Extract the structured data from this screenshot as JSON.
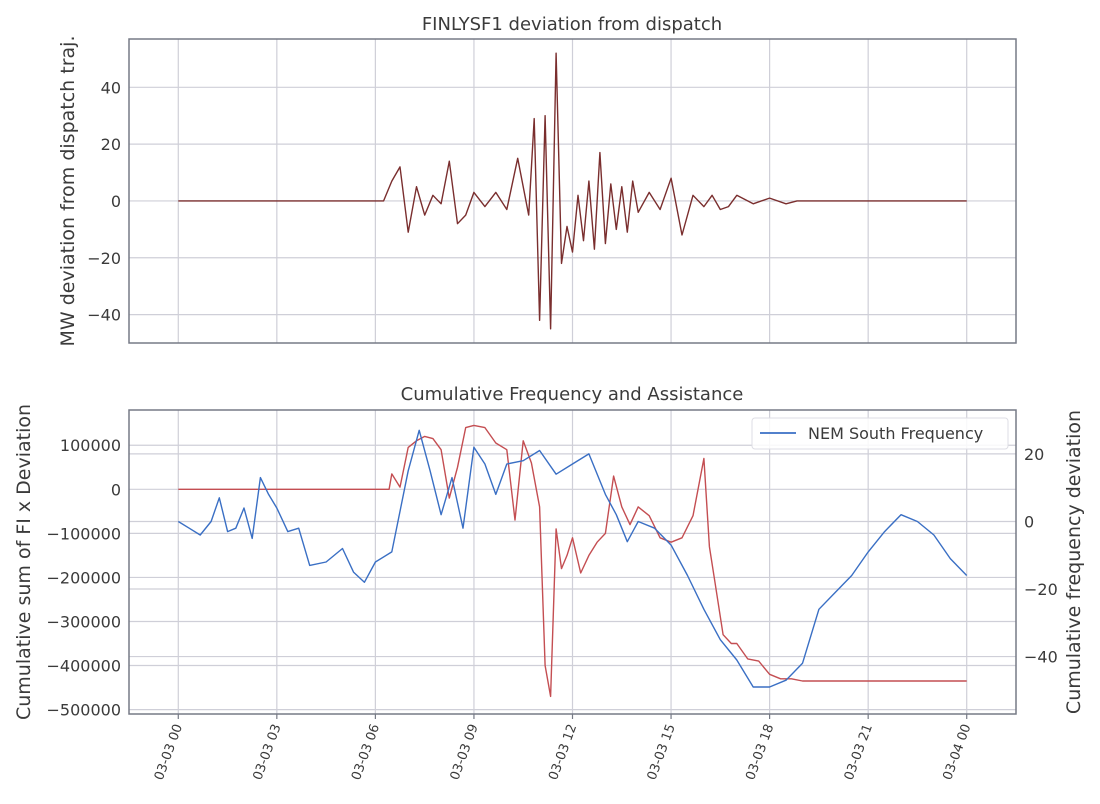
{
  "chart_data": [
    {
      "type": "line",
      "title": "FINLYSF1 deviation from dispatch",
      "xlabel": "",
      "ylabel": "MW deviation from dispatch traj.",
      "ylim": [
        -50,
        57
      ],
      "xlim": [
        "2024-03-02T22:30",
        "2024-03-04T01:30"
      ],
      "yticks": [
        -40,
        -20,
        0,
        20,
        40
      ],
      "ytick_labels": [
        "−40",
        "−20",
        "0",
        "20",
        "40"
      ],
      "grid": true,
      "series": [
        {
          "color": "#7a2e2e",
          "x": [
            "2024-03-03T00:00",
            "2024-03-03T06:15",
            "2024-03-03T06:30",
            "2024-03-03T06:45",
            "2024-03-03T07:00",
            "2024-03-03T07:15",
            "2024-03-03T07:30",
            "2024-03-03T07:45",
            "2024-03-03T08:00",
            "2024-03-03T08:15",
            "2024-03-03T08:30",
            "2024-03-03T08:45",
            "2024-03-03T09:00",
            "2024-03-03T09:20",
            "2024-03-03T09:40",
            "2024-03-03T10:00",
            "2024-03-03T10:20",
            "2024-03-03T10:40",
            "2024-03-03T10:50",
            "2024-03-03T11:00",
            "2024-03-03T11:10",
            "2024-03-03T11:20",
            "2024-03-03T11:30",
            "2024-03-03T11:40",
            "2024-03-03T11:50",
            "2024-03-03T12:00",
            "2024-03-03T12:10",
            "2024-03-03T12:20",
            "2024-03-03T12:30",
            "2024-03-03T12:40",
            "2024-03-03T12:50",
            "2024-03-03T13:00",
            "2024-03-03T13:10",
            "2024-03-03T13:20",
            "2024-03-03T13:30",
            "2024-03-03T13:40",
            "2024-03-03T13:50",
            "2024-03-03T14:00",
            "2024-03-03T14:20",
            "2024-03-03T14:40",
            "2024-03-03T15:00",
            "2024-03-03T15:20",
            "2024-03-03T15:40",
            "2024-03-03T16:00",
            "2024-03-03T16:15",
            "2024-03-03T16:30",
            "2024-03-03T16:45",
            "2024-03-03T17:00",
            "2024-03-03T17:30",
            "2024-03-03T18:00",
            "2024-03-03T18:30",
            "2024-03-03T18:50",
            "2024-03-03T19:00",
            "2024-03-04T00:00"
          ],
          "y": [
            0,
            0,
            7,
            12,
            -11,
            5,
            -5,
            2,
            -1,
            14,
            -8,
            -5,
            3,
            -2,
            3,
            -3,
            15,
            -5,
            29,
            -42,
            30,
            -45,
            52,
            -22,
            -9,
            -18,
            2,
            -14,
            7,
            -17,
            17,
            -15,
            6,
            -10,
            5,
            -11,
            7,
            -4,
            3,
            -3,
            8,
            -12,
            2,
            -2,
            2,
            -3,
            -2,
            2,
            -1,
            1,
            -1,
            0,
            0,
            0
          ]
        }
      ]
    },
    {
      "type": "line",
      "title": "Cumulative Frequency and Assistance",
      "xlabel": "",
      "ylabel": "Cumulative sum of FI x Deviation",
      "ylabel_right": "Cumulative frequency deviation",
      "ylim": [
        -510000,
        180000
      ],
      "ylim_right": [
        -57,
        33
      ],
      "xlim": [
        "2024-03-02T22:30",
        "2024-03-04T01:30"
      ],
      "yticks": [
        -500000,
        -400000,
        -300000,
        -200000,
        -100000,
        0,
        100000
      ],
      "ytick_labels": [
        "−500000",
        "−400000",
        "−300000",
        "−200000",
        "−100000",
        "0",
        "100000"
      ],
      "yticks_right": [
        -40,
        -20,
        0,
        20
      ],
      "ytick_labels_right": [
        "−40",
        "−20",
        "0",
        "20"
      ],
      "xticks": [
        "2024-03-03T00:00",
        "2024-03-03T03:00",
        "2024-03-03T06:00",
        "2024-03-03T09:00",
        "2024-03-03T12:00",
        "2024-03-03T15:00",
        "2024-03-03T18:00",
        "2024-03-03T21:00",
        "2024-03-04T00:00"
      ],
      "xtick_labels": [
        "03-03 00",
        "03-03 03",
        "03-03 06",
        "03-03 09",
        "03-03 12",
        "03-03 15",
        "03-03 18",
        "03-03 21",
        "03-04 00"
      ],
      "grid": true,
      "legend": {
        "placement": "top-right"
      },
      "series": [
        {
          "color": "#c44e52",
          "axis": "left",
          "x": [
            "2024-03-03T00:00",
            "2024-03-03T06:25",
            "2024-03-03T06:30",
            "2024-03-03T06:45",
            "2024-03-03T07:00",
            "2024-03-03T07:15",
            "2024-03-03T07:30",
            "2024-03-03T07:45",
            "2024-03-03T08:00",
            "2024-03-03T08:15",
            "2024-03-03T08:30",
            "2024-03-03T08:45",
            "2024-03-03T09:00",
            "2024-03-03T09:20",
            "2024-03-03T09:40",
            "2024-03-03T10:00",
            "2024-03-03T10:15",
            "2024-03-03T10:30",
            "2024-03-03T10:45",
            "2024-03-03T11:00",
            "2024-03-03T11:10",
            "2024-03-03T11:20",
            "2024-03-03T11:30",
            "2024-03-03T11:40",
            "2024-03-03T11:50",
            "2024-03-03T12:00",
            "2024-03-03T12:15",
            "2024-03-03T12:30",
            "2024-03-03T12:45",
            "2024-03-03T13:00",
            "2024-03-03T13:15",
            "2024-03-03T13:30",
            "2024-03-03T13:45",
            "2024-03-03T14:00",
            "2024-03-03T14:20",
            "2024-03-03T14:40",
            "2024-03-03T15:00",
            "2024-03-03T15:20",
            "2024-03-03T15:40",
            "2024-03-03T16:00",
            "2024-03-03T16:10",
            "2024-03-03T16:20",
            "2024-03-03T16:35",
            "2024-03-03T16:50",
            "2024-03-03T17:00",
            "2024-03-03T17:20",
            "2024-03-03T17:40",
            "2024-03-03T18:00",
            "2024-03-03T18:20",
            "2024-03-03T18:40",
            "2024-03-03T19:00",
            "2024-03-04T00:00"
          ],
          "y": [
            0,
            0,
            35000,
            5000,
            95000,
            110000,
            120000,
            115000,
            90000,
            -20000,
            50000,
            140000,
            145000,
            140000,
            105000,
            90000,
            -70000,
            110000,
            60000,
            -40000,
            -400000,
            -470000,
            -90000,
            -180000,
            -150000,
            -110000,
            -190000,
            -150000,
            -120000,
            -100000,
            30000,
            -40000,
            -80000,
            -40000,
            -60000,
            -110000,
            -120000,
            -110000,
            -60000,
            70000,
            -130000,
            -210000,
            -330000,
            -350000,
            -350000,
            -385000,
            -390000,
            -420000,
            -430000,
            -430000,
            -435000,
            -435000
          ]
        },
        {
          "name": "NEM South Frequency",
          "color": "#3a6fc4",
          "axis": "right",
          "x": [
            "2024-03-03T00:00",
            "2024-03-03T00:20",
            "2024-03-03T00:40",
            "2024-03-03T01:00",
            "2024-03-03T01:15",
            "2024-03-03T01:30",
            "2024-03-03T01:45",
            "2024-03-03T02:00",
            "2024-03-03T02:15",
            "2024-03-03T02:30",
            "2024-03-03T02:45",
            "2024-03-03T03:00",
            "2024-03-03T03:20",
            "2024-03-03T03:40",
            "2024-03-03T04:00",
            "2024-03-03T04:30",
            "2024-03-03T05:00",
            "2024-03-03T05:20",
            "2024-03-03T05:40",
            "2024-03-03T06:00",
            "2024-03-03T06:30",
            "2024-03-03T07:00",
            "2024-03-03T07:20",
            "2024-03-03T07:40",
            "2024-03-03T08:00",
            "2024-03-03T08:20",
            "2024-03-03T08:40",
            "2024-03-03T09:00",
            "2024-03-03T09:20",
            "2024-03-03T09:40",
            "2024-03-03T10:00",
            "2024-03-03T10:30",
            "2024-03-03T11:00",
            "2024-03-03T11:30",
            "2024-03-03T12:00",
            "2024-03-03T12:30",
            "2024-03-03T13:00",
            "2024-03-03T13:20",
            "2024-03-03T13:40",
            "2024-03-03T14:00",
            "2024-03-03T14:30",
            "2024-03-03T15:00",
            "2024-03-03T15:30",
            "2024-03-03T16:00",
            "2024-03-03T16:30",
            "2024-03-03T17:00",
            "2024-03-03T17:30",
            "2024-03-03T18:00",
            "2024-03-03T18:30",
            "2024-03-03T19:00",
            "2024-03-03T19:30",
            "2024-03-03T20:00",
            "2024-03-03T20:30",
            "2024-03-03T21:00",
            "2024-03-03T21:30",
            "2024-03-03T22:00",
            "2024-03-03T22:30",
            "2024-03-03T23:00",
            "2024-03-03T23:30",
            "2024-03-04T00:00"
          ],
          "y": [
            0,
            -2,
            -4,
            0,
            7,
            -3,
            -2,
            4,
            -5,
            13,
            8,
            4,
            -3,
            -2,
            -13,
            -12,
            -8,
            -15,
            -18,
            -12,
            -9,
            15,
            27,
            15,
            2,
            13,
            -2,
            22,
            17,
            8,
            17,
            18,
            21,
            14,
            17,
            20,
            8,
            2,
            -6,
            0,
            -2,
            -7,
            -16,
            -26,
            -35,
            -41,
            -49,
            -49,
            -47,
            -42,
            -26,
            -21,
            -16,
            -9,
            -3,
            2,
            0,
            -4,
            -11,
            -16
          ]
        }
      ]
    }
  ]
}
